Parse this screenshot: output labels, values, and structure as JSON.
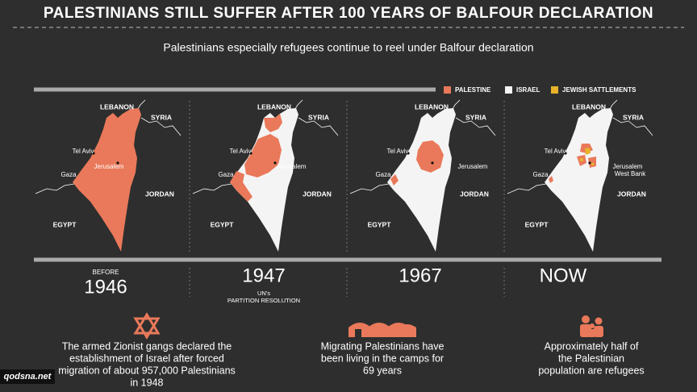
{
  "header": {
    "title": "PALESTINIANS STILL SUFFER AFTER 100 YEARS OF BALFOUR DECLARATION",
    "subtitle": "Palestinians especially refugees continue to reel under Balfour declaration"
  },
  "legend": [
    "PALESTINE",
    "ISRAEL",
    "JEWISH SATTLEMENTS"
  ],
  "maps": [
    {
      "lebanon": "LEBANON",
      "syria": "SYRIA",
      "tel_aviv": "Tel Aviv",
      "gaza": "Gaza",
      "jerusalem": "Jerusalem",
      "jordan": "JORDAN",
      "egypt": "EGYPT"
    },
    {
      "lebanon": "LEBANON",
      "syria": "SYRIA",
      "tel_aviv": "Tel Aviv",
      "gaza": "Gaza",
      "jerusalem": "Jerusalem",
      "jordan": "JORDAN",
      "egypt": "EGYPT"
    },
    {
      "lebanon": "LEBANON",
      "syria": "SYRIA",
      "tel_aviv": "Tel Aviv",
      "gaza": "Gaza",
      "jerusalem": "Jerusalem",
      "jordan": "JORDAN",
      "egypt": "EGYPT"
    },
    {
      "lebanon": "LEBANON",
      "syria": "SYRIA",
      "tel_aviv": "Tel Aviv",
      "gaza": "Gaza",
      "jerusalem": "Jerusalem",
      "west_bank": "West Bank",
      "jordan": "JORDAN",
      "egypt": "EGYPT"
    }
  ],
  "timeline": [
    {
      "note": "BEFORE",
      "label": "1946"
    },
    {
      "label": "1947",
      "note": [
        "UN's",
        "PARTITION RESOLUTION"
      ]
    },
    {
      "label": "1967"
    },
    {
      "label": "NOW"
    }
  ],
  "facts": [
    [
      "The armed Zionist gangs declared the",
      "establishment of Israel after forced",
      "migration of about 957,000 Palestinians",
      "in 1948"
    ],
    [
      "Migrating Palestinians have",
      "been living in the camps for",
      "69 years"
    ],
    [
      "Approximately half of",
      "the Palestinian",
      "population are refugees"
    ]
  ],
  "watermark": "qodsna.net"
}
